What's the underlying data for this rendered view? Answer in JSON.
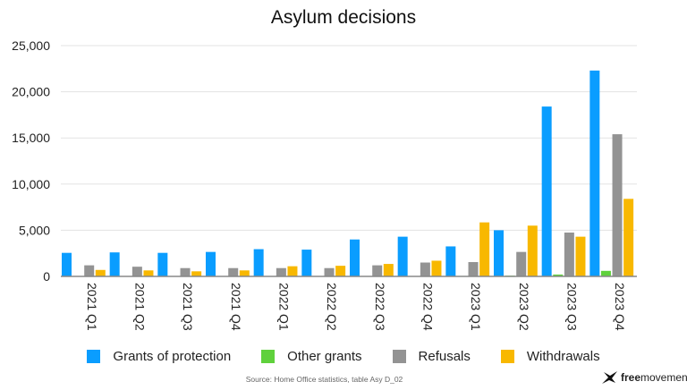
{
  "chart_data": {
    "type": "bar",
    "title": "Asylum decisions",
    "categories": [
      "2021 Q1",
      "2021 Q2",
      "2021 Q3",
      "2021 Q4",
      "2022 Q1",
      "2022 Q2",
      "2022 Q3",
      "2022 Q4",
      "2023 Q1",
      "2023 Q2",
      "2023 Q3",
      "2023 Q4"
    ],
    "series": [
      {
        "name": "Grants of protection",
        "color": "#0a9dff",
        "values": [
          2550,
          2600,
          2550,
          2650,
          2950,
          2900,
          4000,
          4300,
          3250,
          5000,
          18400,
          22300
        ]
      },
      {
        "name": "Other grants",
        "color": "#5fd13c",
        "values": [
          30,
          30,
          30,
          30,
          30,
          30,
          40,
          40,
          50,
          80,
          200,
          600
        ]
      },
      {
        "name": "Refusals",
        "color": "#939393",
        "values": [
          1200,
          1050,
          900,
          900,
          900,
          900,
          1200,
          1500,
          1550,
          2650,
          4750,
          15400
        ]
      },
      {
        "name": "Withdrawals",
        "color": "#f8b800",
        "values": [
          700,
          650,
          550,
          650,
          1100,
          1150,
          1350,
          1700,
          5850,
          5500,
          4300,
          8400
        ]
      }
    ],
    "ylim": [
      0,
      25000
    ],
    "yticks": [
      "0",
      "5,000",
      "10,000",
      "15,000",
      "20,000",
      "25,000"
    ],
    "grid": true,
    "legend": "bottom"
  },
  "source": "Source: Home Office statistics, table Asy D_02",
  "logo": {
    "bold": "free",
    "rest": "movement"
  }
}
